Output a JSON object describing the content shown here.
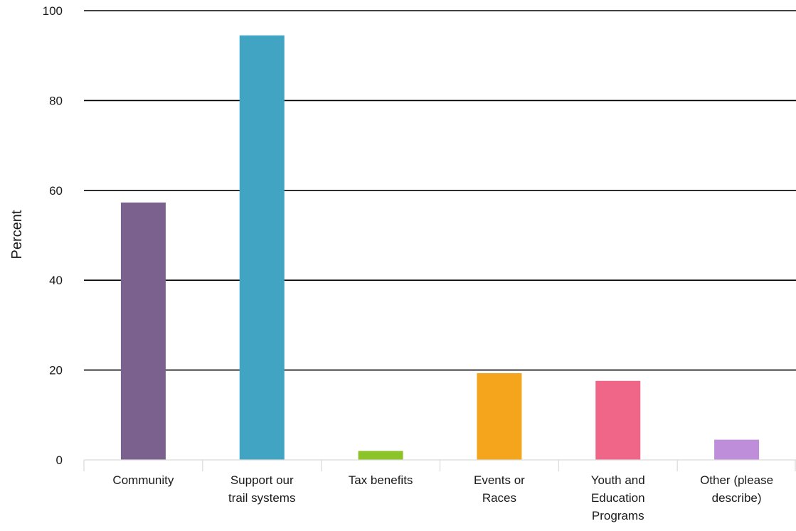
{
  "chart_data": {
    "type": "bar",
    "ylabel": "Percent",
    "xlabel": "",
    "ylim": [
      0,
      100
    ],
    "yticks": [
      0,
      20,
      40,
      60,
      80,
      100
    ],
    "grid": true,
    "categories": [
      "Community",
      "Support our trail systems",
      "Tax benefits",
      "Events or Races",
      "Youth and Education Programs",
      "Other (please describe)"
    ],
    "category_label_lines": [
      [
        "Community"
      ],
      [
        "Support our",
        "trail systems"
      ],
      [
        "Tax benefits"
      ],
      [
        "Events or",
        "Races"
      ],
      [
        "Youth and",
        "Education",
        "Programs"
      ],
      [
        "Other (please",
        "describe)"
      ]
    ],
    "values": [
      57.3,
      94.5,
      2.0,
      19.3,
      17.6,
      4.5
    ],
    "colors": [
      "#7b628e",
      "#40a4c2",
      "#8bc328",
      "#f5a51b",
      "#f06689",
      "#be8edb"
    ]
  }
}
